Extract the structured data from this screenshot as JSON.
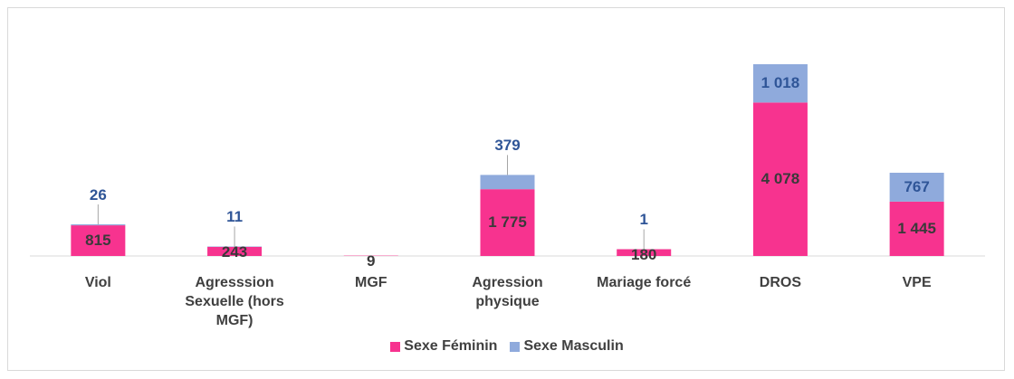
{
  "chart_data": {
    "type": "stacked_bar",
    "categories": [
      "Viol",
      "Agresssion Sexuelle (hors MGF)",
      "MGF",
      "Agression physique",
      "Mariage forcé",
      "DROS",
      "VPE"
    ],
    "series": [
      {
        "name": "Sexe Féminin",
        "color": "#f7338f",
        "values": [
          815,
          243,
          9,
          1775,
          180,
          4078,
          1445
        ],
        "value_labels": [
          "815",
          "243",
          "9",
          "1 775",
          "180",
          "4 078",
          "1 445"
        ]
      },
      {
        "name": "Sexe Masculin",
        "color": "#8faadc",
        "values": [
          26,
          11,
          null,
          379,
          1,
          1018,
          767
        ],
        "value_labels": [
          "26",
          "11",
          null,
          "379",
          "1",
          "1 018",
          "767"
        ]
      }
    ],
    "legend": "bottom"
  }
}
